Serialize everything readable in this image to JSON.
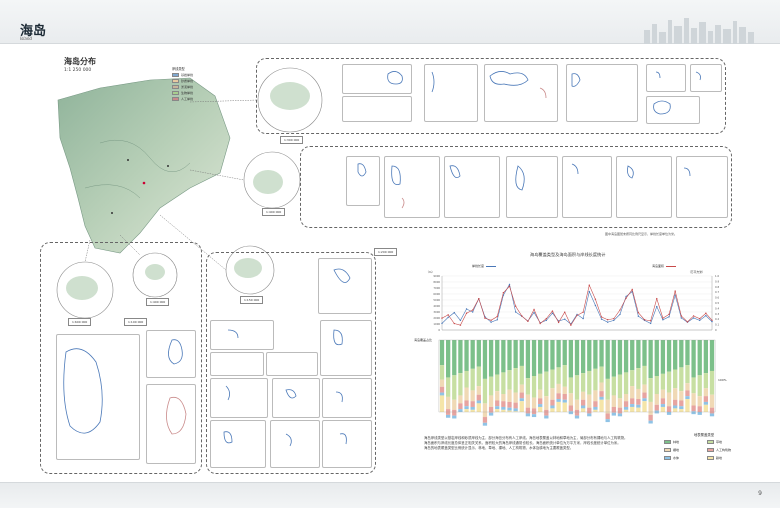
{
  "header": {
    "title": "海岛",
    "subtitle": "Island"
  },
  "footer": {
    "page_number": "9"
  },
  "map": {
    "title": "海岛分布",
    "scale": "1:1 250 000",
    "legend_title": "岸线类型",
    "legend": [
      {
        "label": "基岩岸线",
        "color": "#7fa8d0"
      },
      {
        "label": "砂质岸线",
        "color": "#e7c9a0"
      },
      {
        "label": "淤泥岸线",
        "color": "#c8b49a"
      },
      {
        "label": "生物岸线",
        "color": "#a8cf8e"
      },
      {
        "label": "人工岸线",
        "color": "#c98a8a"
      }
    ],
    "inset_scales": [
      "1:300 000",
      "1:400 000",
      "1:150 000",
      "1:400 000",
      "1:600 000",
      "1:100 000",
      "1:200 000"
    ]
  },
  "panels": {
    "label_name": "名称：",
    "label_area": "面积：",
    "label_length": "岸线长度："
  },
  "note": "图中海岛图斑未按同比例尺显示，岸线长度单位为米。",
  "chart": {
    "title": "海岛覆盖类型及海岛面积与岸线长度统计",
    "legend_left": "岸线长度",
    "legend_right": "海岛面积",
    "y_left_unit": "（m）",
    "y_right_unit": "（万平方米）",
    "cover_axis_label": "海岛覆盖占比",
    "pct_label": "100%",
    "cover_legend_title": "地表覆盖类型",
    "cover_legend": [
      {
        "label": "林地",
        "color": "#7cc08a"
      },
      {
        "label": "草地",
        "color": "#c7dfa2"
      },
      {
        "label": "裸地",
        "color": "#f0d9b5"
      },
      {
        "label": "人工构筑物",
        "color": "#e7a4a0"
      },
      {
        "label": "水体",
        "color": "#8fc3e6"
      },
      {
        "label": "耕地",
        "color": "#f5e5a8"
      }
    ]
  },
  "chart_data": {
    "type": "line",
    "title": "海岛覆盖类型及海岛面积与岸线长度统计",
    "y_left_ticks": [
      "9000",
      "8000",
      "7000",
      "6000",
      "5000",
      "4000",
      "3000",
      "2000",
      "1000",
      "0"
    ],
    "y_right_ticks": [
      "1.0",
      "0.9",
      "0.8",
      "0.7",
      "0.6",
      "0.5",
      "0.4",
      "0.3",
      "0.2",
      "0.1",
      "0"
    ],
    "ylim_left": [
      0,
      9000
    ],
    "ylim_right": [
      0,
      1.0
    ],
    "series": [
      {
        "name": "岸线长度",
        "axis": "left",
        "color": "#4a78b8",
        "values": [
          1100,
          2100,
          2900,
          1600,
          3500,
          3000,
          5200,
          2200,
          1300,
          1700,
          5800,
          7600,
          3000,
          2300,
          1500,
          2900,
          1200,
          1600,
          2800,
          1500,
          1800,
          1000,
          2600,
          1900,
          6400,
          4100,
          1800,
          1300,
          1600,
          2600,
          5600,
          6400,
          2300,
          1600,
          1100,
          3900,
          1700,
          2200,
          5800,
          2000,
          1300,
          2000,
          1600,
          2400,
          1400
        ]
      },
      {
        "name": "海岛面积",
        "axis": "right",
        "color": "#c84a4a",
        "values": [
          0.22,
          0.28,
          0.12,
          0.09,
          0.31,
          0.37,
          0.58,
          0.22,
          0.18,
          0.25,
          0.69,
          0.81,
          0.44,
          0.26,
          0.16,
          0.38,
          0.12,
          0.21,
          0.35,
          0.14,
          0.33,
          0.09,
          0.27,
          0.33,
          0.83,
          0.57,
          0.24,
          0.19,
          0.21,
          0.37,
          0.59,
          0.75,
          0.32,
          0.19,
          0.17,
          0.58,
          0.22,
          0.29,
          0.72,
          0.26,
          0.15,
          0.26,
          0.21,
          0.31,
          0.18
        ]
      }
    ]
  },
  "text_block": [
    "海岛岸线类型以基岩岸线和砂质岸线为主，部分海岛分布有人工岸线。海岛地表覆盖以林地和草地为主，局部分布有裸地与人工构筑物。",
    "海岛面积与岸线长度总体呈正相关关系，面积较大的海岛岸线通常也较长。海岛面积统计单位为万平方米，岸线长度统计单位为米。",
    "海岛的地表覆盖类型比例统计显示，林地、草地、裸地、人工构筑物、水体及耕地为主要覆盖类型。"
  ]
}
